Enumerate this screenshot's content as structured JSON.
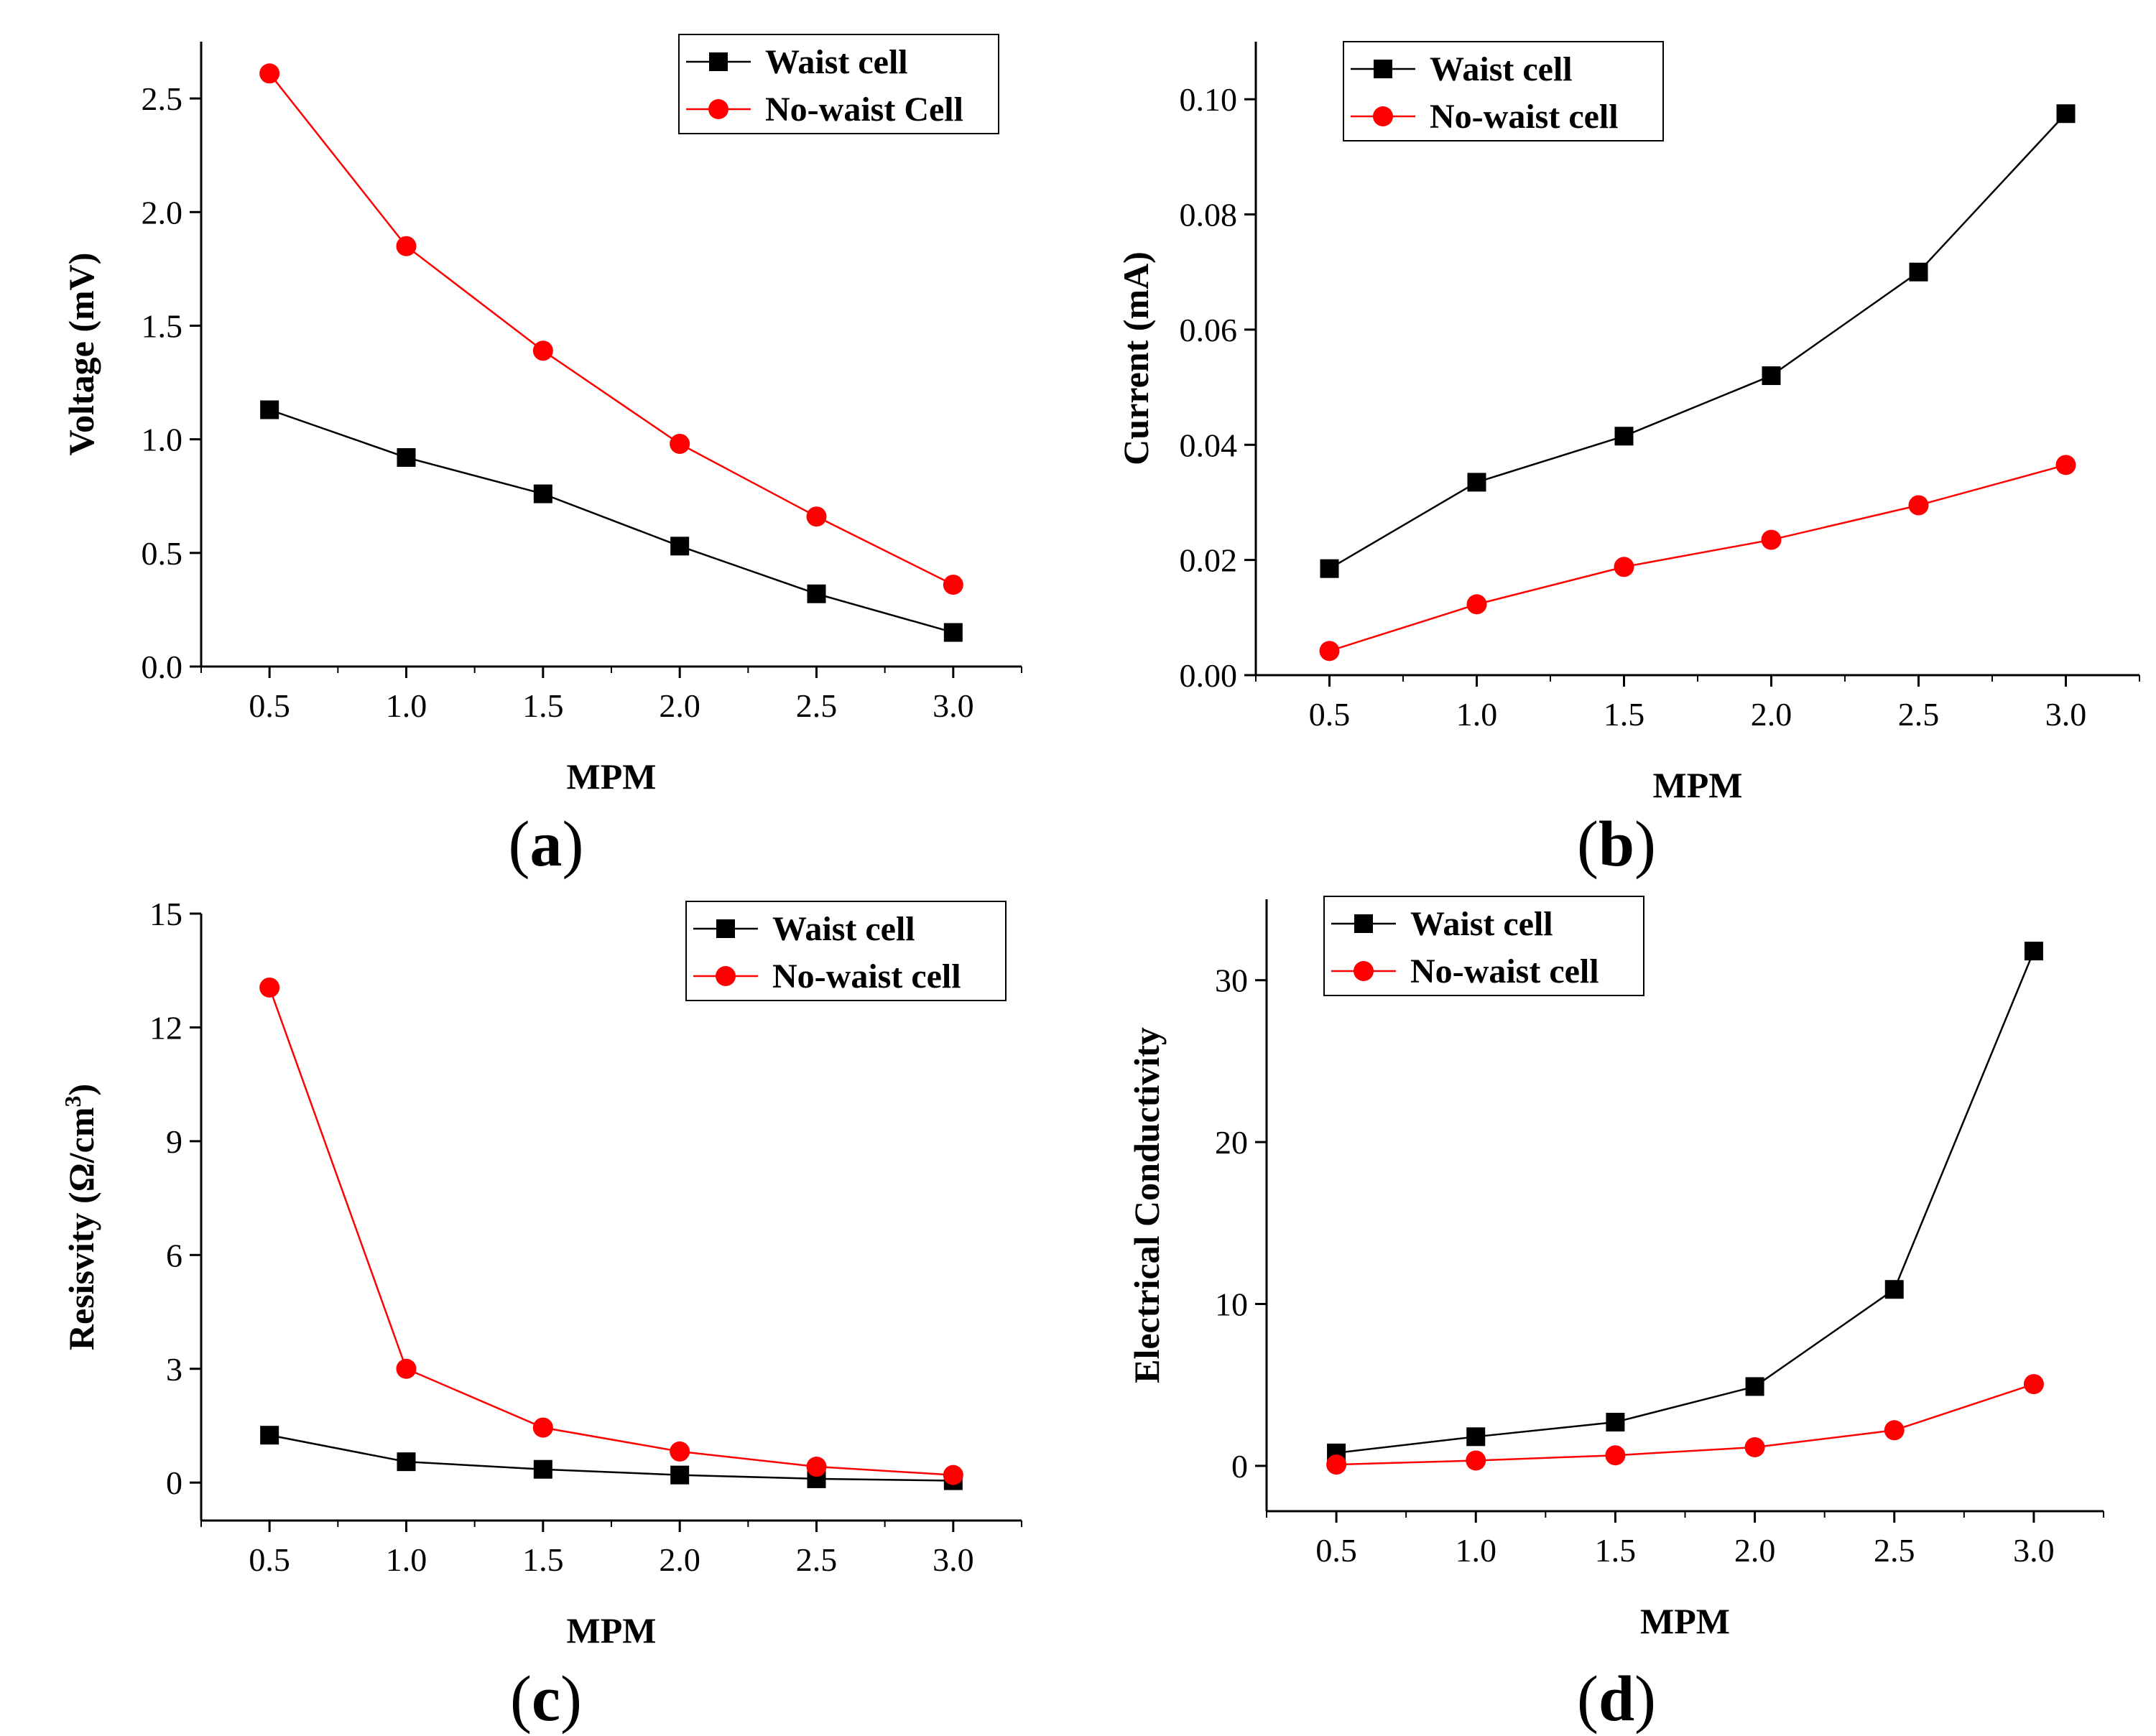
{
  "colors": {
    "waist": "#000000",
    "no_waist": "#ff0000",
    "axis": "#000000"
  },
  "chart_data": [
    {
      "type": "line",
      "panel": "a",
      "panel_label": {
        "open": "(",
        "letter": "a",
        "close": ")"
      },
      "title": "",
      "xlabel": "MPM",
      "ylabel": "Voltage (mV)",
      "xlim": [
        0.25,
        3.25
      ],
      "ylim": [
        0,
        2.75
      ],
      "xticks": [
        0.5,
        1.0,
        1.5,
        2.0,
        2.5,
        3.0
      ],
      "xtick_labels": [
        "0.5",
        "1.0",
        "1.5",
        "2.0",
        "2.5",
        "3.0"
      ],
      "yticks": [
        0,
        0.5,
        1.0,
        1.5,
        2.0,
        2.5
      ],
      "ytick_labels": [
        "0.0",
        "0.5",
        "1.0",
        "1.5",
        "2.0",
        "2.5"
      ],
      "x": [
        0.5,
        1.0,
        1.5,
        2.0,
        2.5,
        3.0
      ],
      "legend_position": "top-right",
      "series": [
        {
          "name": "Waist cell",
          "marker": "square",
          "color": "#000000",
          "values": [
            1.13,
            0.92,
            0.76,
            0.53,
            0.32,
            0.15
          ]
        },
        {
          "name": "No-waist Cell",
          "marker": "circle",
          "color": "#ff0000",
          "values": [
            2.61,
            1.85,
            1.39,
            0.98,
            0.66,
            0.36
          ]
        }
      ]
    },
    {
      "type": "line",
      "panel": "b",
      "panel_label": {
        "open": "(",
        "letter": "b",
        "close": ")"
      },
      "title": "",
      "xlabel": "MPM",
      "ylabel": "Current (mA)",
      "xlim": [
        0.25,
        3.25
      ],
      "ylim": [
        0,
        0.11
      ],
      "xticks": [
        0.5,
        1.0,
        1.5,
        2.0,
        2.5,
        3.0
      ],
      "xtick_labels": [
        "0.5",
        "1.0",
        "1.5",
        "2.0",
        "2.5",
        "3.0"
      ],
      "yticks": [
        0,
        0.02,
        0.04,
        0.06,
        0.08,
        0.1
      ],
      "ytick_labels": [
        "0.00",
        "0.02",
        "0.04",
        "0.06",
        "0.08",
        "0.10"
      ],
      "x": [
        0.5,
        1.0,
        1.5,
        2.0,
        2.5,
        3.0
      ],
      "legend_position": "top-left",
      "series": [
        {
          "name": "Waist cell",
          "marker": "square",
          "color": "#000000",
          "values": [
            0.0185,
            0.0335,
            0.0415,
            0.052,
            0.07,
            0.0975
          ]
        },
        {
          "name": "No-waist cell",
          "marker": "circle",
          "color": "#ff0000",
          "values": [
            0.0042,
            0.0123,
            0.0188,
            0.0235,
            0.0295,
            0.0365
          ]
        }
      ]
    },
    {
      "type": "line",
      "panel": "c",
      "panel_label": {
        "open": "(",
        "letter": "c",
        "close": ")"
      },
      "title": "",
      "xlabel": "MPM",
      "ylabel": "Resisvity (Ω/cm³)",
      "ylabel_parts": {
        "prefix": "Resisvity (Ω/cm",
        "superscript": "3",
        "suffix": ")"
      },
      "xlim": [
        0.25,
        3.25
      ],
      "ylim": [
        -1,
        15
      ],
      "xticks": [
        0.5,
        1.0,
        1.5,
        2.0,
        2.5,
        3.0
      ],
      "xtick_labels": [
        "0.5",
        "1.0",
        "1.5",
        "2.0",
        "2.5",
        "3.0"
      ],
      "yticks": [
        0,
        3,
        6,
        9,
        12,
        15
      ],
      "ytick_labels": [
        "0",
        "3",
        "6",
        "9",
        "12",
        "15"
      ],
      "x": [
        0.5,
        1.0,
        1.5,
        2.0,
        2.5,
        3.0
      ],
      "legend_position": "top-right",
      "series": [
        {
          "name": "Waist cell",
          "marker": "square",
          "color": "#000000",
          "values": [
            1.25,
            0.55,
            0.35,
            0.2,
            0.1,
            0.05
          ]
        },
        {
          "name": "No-waist cell",
          "marker": "circle",
          "color": "#ff0000",
          "values": [
            13.05,
            3.0,
            1.45,
            0.82,
            0.42,
            0.2
          ]
        }
      ]
    },
    {
      "type": "line",
      "panel": "d",
      "panel_label": {
        "open": "(",
        "letter": "d",
        "close": ")"
      },
      "title": "",
      "xlabel": "MPM",
      "ylabel": "Electrical Conductivity",
      "xlim": [
        0.25,
        3.25
      ],
      "ylim": [
        -2.8,
        35
      ],
      "xticks": [
        0.5,
        1.0,
        1.5,
        2.0,
        2.5,
        3.0
      ],
      "xtick_labels": [
        "0.5",
        "1.0",
        "1.5",
        "2.0",
        "2.5",
        "3.0"
      ],
      "yticks": [
        0,
        10,
        20,
        30
      ],
      "ytick_labels": [
        "0",
        "10",
        "20",
        "30"
      ],
      "x": [
        0.5,
        1.0,
        1.5,
        2.0,
        2.5,
        3.0
      ],
      "legend_position": "top-left",
      "series": [
        {
          "name": "Waist cell",
          "marker": "square",
          "color": "#000000",
          "values": [
            0.8,
            1.8,
            2.7,
            4.9,
            10.9,
            31.8
          ]
        },
        {
          "name": "No-waist cell",
          "marker": "circle",
          "color": "#ff0000",
          "values": [
            0.08,
            0.33,
            0.65,
            1.15,
            2.2,
            5.05
          ]
        }
      ]
    }
  ]
}
